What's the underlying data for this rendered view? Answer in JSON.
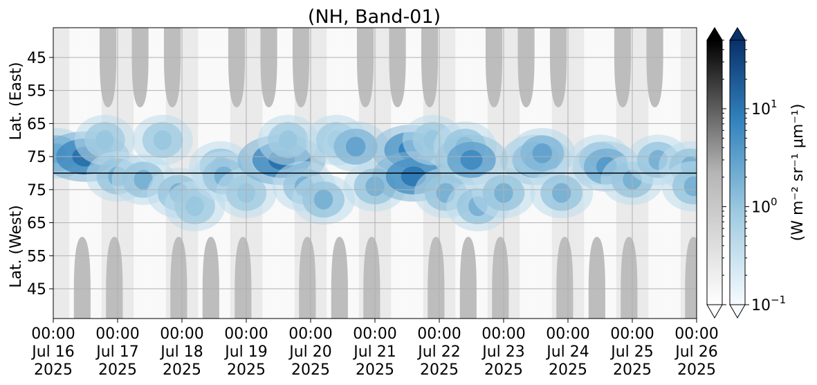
{
  "chart_data": {
    "type": "heatmap",
    "title": "(NH, Band-01)",
    "x": {
      "start": "2025-07-16T00:00",
      "end": "2025-07-26T00:00",
      "ticks": [
        {
          "t": "00:00",
          "d": "Jul 16",
          "y": "2025"
        },
        {
          "t": "00:00",
          "d": "Jul 17",
          "y": "2025"
        },
        {
          "t": "00:00",
          "d": "Jul 18",
          "y": "2025"
        },
        {
          "t": "00:00",
          "d": "Jul 19",
          "y": "2025"
        },
        {
          "t": "00:00",
          "d": "Jul 20",
          "y": "2025"
        },
        {
          "t": "00:00",
          "d": "Jul 21",
          "y": "2025"
        },
        {
          "t": "00:00",
          "d": "Jul 22",
          "y": "2025"
        },
        {
          "t": "00:00",
          "d": "Jul 23",
          "y": "2025"
        },
        {
          "t": "00:00",
          "d": "Jul 24",
          "y": "2025"
        },
        {
          "t": "00:00",
          "d": "Jul 25",
          "y": "2025"
        },
        {
          "t": "00:00",
          "d": "Jul 26",
          "y": "2025"
        }
      ]
    },
    "y_top": {
      "label": "Lat. (East)",
      "ticks": [
        "45",
        "55",
        "65",
        "75"
      ],
      "range": [
        36,
        80
      ]
    },
    "y_bottom": {
      "label": "Lat. (West)",
      "ticks": [
        "75",
        "65",
        "55",
        "45"
      ],
      "range": [
        80,
        36
      ]
    },
    "colorbar": {
      "label": "(W m⁻² sr⁻¹ μm⁻¹)",
      "scale": "log",
      "range": [
        0.1,
        50
      ],
      "tick_labels": [
        {
          "base": "10",
          "exp": "1",
          "value": 10
        },
        {
          "base": "10",
          "exp": "0",
          "value": 1
        },
        {
          "base": "10",
          "exp": "−1",
          "value": 0.1
        }
      ],
      "colormaps": [
        "Greys",
        "Blues"
      ],
      "extend": "both"
    },
    "grid": true,
    "no_data_color": "#bdbdbd",
    "no_data_regions": {
      "top_centers_days": [
        0.85,
        1.35,
        1.85,
        2.85,
        3.35,
        3.85,
        4.85,
        5.35,
        5.85,
        6.85,
        7.35,
        7.85,
        8.85,
        9.35
      ],
      "bottom_centers_days": [
        0.45,
        0.95,
        1.95,
        2.45,
        2.95,
        3.95,
        4.45,
        4.95,
        5.95,
        6.45,
        6.95,
        7.95,
        8.45,
        8.95,
        9.95
      ]
    },
    "radiance_blobs": [
      {
        "day": 0.05,
        "lat": 74,
        "hemi": "east",
        "peak": 3
      },
      {
        "day": 0.5,
        "lat": 75,
        "hemi": "east",
        "peak": 12
      },
      {
        "day": 0.8,
        "lat": 70,
        "hemi": "east",
        "peak": 1
      },
      {
        "day": 1.0,
        "lat": 79,
        "hemi": "west",
        "peak": 2
      },
      {
        "day": 1.4,
        "lat": 78,
        "hemi": "west",
        "peak": 2
      },
      {
        "day": 1.7,
        "lat": 70,
        "hemi": "east",
        "peak": 1
      },
      {
        "day": 1.95,
        "lat": 74,
        "hemi": "west",
        "peak": 2
      },
      {
        "day": 2.2,
        "lat": 70,
        "hemi": "west",
        "peak": 1
      },
      {
        "day": 2.6,
        "lat": 78,
        "hemi": "east",
        "peak": 2
      },
      {
        "day": 2.65,
        "lat": 79,
        "hemi": "west",
        "peak": 2
      },
      {
        "day": 3.0,
        "lat": 74,
        "hemi": "west",
        "peak": 1
      },
      {
        "day": 3.55,
        "lat": 76,
        "hemi": "east",
        "peak": 12
      },
      {
        "day": 3.65,
        "lat": 70,
        "hemi": "east",
        "peak": 1
      },
      {
        "day": 3.9,
        "lat": 76,
        "hemi": "west",
        "peak": 2
      },
      {
        "day": 4.2,
        "lat": 72,
        "hemi": "west",
        "peak": 2
      },
      {
        "day": 4.4,
        "lat": 70,
        "hemi": "east",
        "peak": 1
      },
      {
        "day": 4.7,
        "lat": 72,
        "hemi": "east",
        "peak": 3
      },
      {
        "day": 5.0,
        "lat": 76,
        "hemi": "west",
        "peak": 2
      },
      {
        "day": 5.55,
        "lat": 73,
        "hemi": "east",
        "peak": 8
      },
      {
        "day": 5.6,
        "lat": 79,
        "hemi": "west",
        "peak": 10
      },
      {
        "day": 5.9,
        "lat": 70,
        "hemi": "east",
        "peak": 1
      },
      {
        "day": 6.1,
        "lat": 74,
        "hemi": "west",
        "peak": 2
      },
      {
        "day": 6.4,
        "lat": 72,
        "hemi": "east",
        "peak": 2
      },
      {
        "day": 6.5,
        "lat": 76,
        "hemi": "east",
        "peak": 6
      },
      {
        "day": 6.6,
        "lat": 70,
        "hemi": "west",
        "peak": 2
      },
      {
        "day": 7.0,
        "lat": 74,
        "hemi": "west",
        "peak": 2
      },
      {
        "day": 7.5,
        "lat": 76,
        "hemi": "east",
        "peak": 5
      },
      {
        "day": 7.6,
        "lat": 74,
        "hemi": "east",
        "peak": 3
      },
      {
        "day": 7.9,
        "lat": 74,
        "hemi": "west",
        "peak": 2
      },
      {
        "day": 8.5,
        "lat": 76,
        "hemi": "east",
        "peak": 2
      },
      {
        "day": 8.6,
        "lat": 78,
        "hemi": "east",
        "peak": 4
      },
      {
        "day": 9.0,
        "lat": 78,
        "hemi": "west",
        "peak": 2
      },
      {
        "day": 9.4,
        "lat": 76,
        "hemi": "east",
        "peak": 2
      },
      {
        "day": 9.9,
        "lat": 78,
        "hemi": "east",
        "peak": 2
      },
      {
        "day": 9.95,
        "lat": 76,
        "hemi": "west",
        "peak": 2
      }
    ]
  }
}
